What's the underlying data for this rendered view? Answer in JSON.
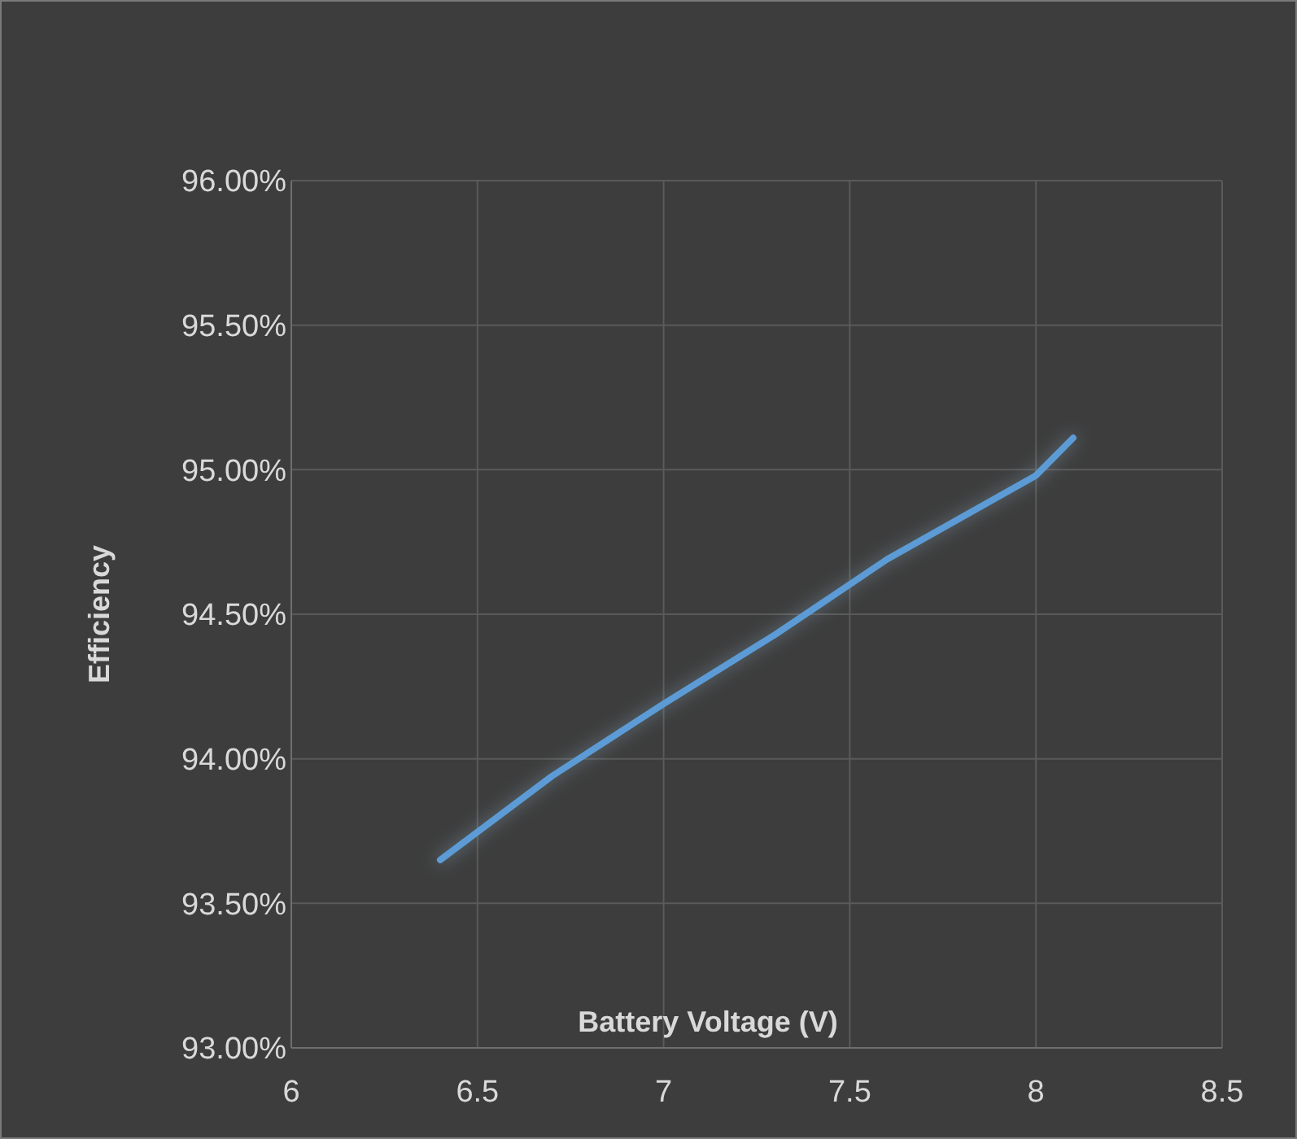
{
  "chart_data": {
    "type": "line",
    "xlabel": "Battery Voltage (V)",
    "ylabel": "Efficiency",
    "x": [
      6.4,
      6.7,
      7.0,
      7.3,
      7.6,
      8.0,
      8.1
    ],
    "series": [
      {
        "color": "#5b9bd5",
        "values": [
          93.65,
          93.94,
          94.19,
          94.43,
          94.69,
          94.98,
          95.11
        ]
      }
    ],
    "xlim": [
      6,
      8.5
    ],
    "xticks": [
      6,
      6.5,
      7,
      7.5,
      8,
      8.5
    ],
    "ylim": [
      93,
      96
    ],
    "yticks": [
      {
        "value": 93,
        "label": "93.00%"
      },
      {
        "value": 93.5,
        "label": "93.50%"
      },
      {
        "value": 94,
        "label": "94.00%"
      },
      {
        "value": 94.5,
        "label": "94.50%"
      },
      {
        "value": 95,
        "label": "95.00%"
      },
      {
        "value": 95.5,
        "label": "95.50%"
      },
      {
        "value": 96,
        "label": "96.00%"
      }
    ],
    "grid": true,
    "marker": "none",
    "line_style": "solid"
  }
}
